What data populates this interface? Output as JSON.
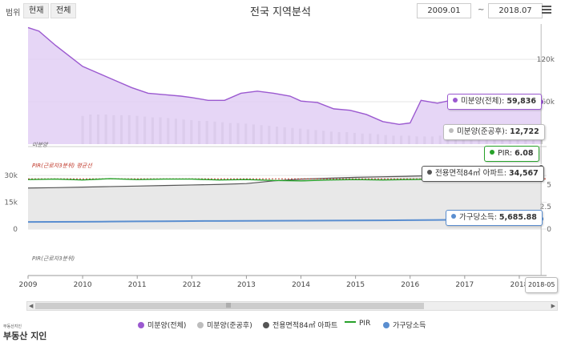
{
  "toolbar": {
    "range_label": "범위",
    "btn_current": "현재",
    "btn_all": "전체",
    "title": "전국 지역분석",
    "date_from": "2009.01",
    "tilde": "~",
    "date_to": "2018.07"
  },
  "colors": {
    "purple": "#9b59d0",
    "purple_fill": "#e2cff5",
    "gray_bar": "#bdbdbd",
    "apt_line": "#555555",
    "apt_fill": "#e8e8e8",
    "pir": "#27a12a",
    "pir_avg": "#c0392b",
    "income": "#5a8ed0"
  },
  "panel_labels": {
    "top": "미분양",
    "pir_avg": "PIR(근로자3분위) 평균선",
    "bottom": "PIR(근로자3분위)"
  },
  "tooltips": {
    "unsold_total": {
      "label": "미분양(전체): ",
      "value": "59,836"
    },
    "unsold_completed": {
      "label": "미분양(준공후): ",
      "value": "12,722"
    },
    "pir": {
      "label": "PIR: ",
      "value": "6.08"
    },
    "apt": {
      "label": "전용면적84㎡ 아파트: ",
      "value": "34,567"
    },
    "income": {
      "label": "가구당소득: ",
      "value": "5,685.88"
    },
    "x_flag": "2018-05"
  },
  "legend": [
    {
      "name": "미분양(전체)",
      "type": "dot",
      "color": "#9b59d0"
    },
    {
      "name": "미분양(준공후)",
      "type": "dot",
      "color": "#bdbdbd"
    },
    {
      "name": "전용면적84㎡ 아파트",
      "type": "dot",
      "color": "#555555"
    },
    {
      "name": "PIR",
      "type": "line",
      "color": "#27a12a"
    },
    {
      "name": "가구당소득",
      "type": "dot",
      "color": "#5a8ed0"
    }
  ],
  "logo": {
    "small": "부동산지인",
    "text": "부동산 지인"
  },
  "chart_data": [
    {
      "type": "area",
      "series": [
        {
          "name": "미분양(전체)",
          "x": [
            2009.0,
            2009.2,
            2009.5,
            2009.8,
            2010.0,
            2010.3,
            2010.6,
            2010.9,
            2011.2,
            2011.5,
            2011.8,
            2012.0,
            2012.3,
            2012.6,
            2012.9,
            2013.2,
            2013.5,
            2013.8,
            2014.0,
            2014.3,
            2014.6,
            2014.9,
            2015.2,
            2015.5,
            2015.8,
            2016.0,
            2016.2,
            2016.5,
            2016.8,
            2017.0,
            2017.3,
            2017.6,
            2017.9,
            2018.2,
            2018.4
          ],
          "values": [
            165000,
            160000,
            140000,
            122000,
            110000,
            100000,
            90000,
            80000,
            72000,
            70000,
            68000,
            66000,
            62000,
            62000,
            72000,
            75000,
            72000,
            68000,
            61000,
            59000,
            50000,
            48000,
            42000,
            32000,
            28000,
            30000,
            62000,
            58000,
            63000,
            58000,
            58000,
            55000,
            58000,
            60000,
            59836
          ]
        },
        {
          "name": "미분양(준공후)",
          "x_start": 2010.0,
          "x_end": 2018.4,
          "values": [
            40000,
            42000,
            42000,
            42000,
            41000,
            41000,
            41000,
            40000,
            39000,
            38000,
            38000,
            37000,
            36000,
            35000,
            34000,
            33000,
            33000,
            32000,
            31000,
            30000,
            30000,
            29000,
            28000,
            27000,
            26000,
            25000,
            24000,
            23000,
            22000,
            21000,
            20000,
            19000,
            18000,
            17000,
            17000,
            16000,
            15000,
            15000,
            14000,
            13000,
            12000,
            12000,
            12000,
            11000,
            11000,
            11000,
            12000,
            12000,
            12000,
            12000,
            13000,
            13000,
            13000,
            13000,
            12000,
            12000,
            12000,
            12000,
            12000,
            12722
          ]
        }
      ],
      "yticks": [
        "120k",
        "60k"
      ],
      "ylim": [
        0,
        170000
      ]
    },
    {
      "type": "line",
      "x": [
        2009.0,
        2009.5,
        2010.0,
        2010.5,
        2011.0,
        2011.5,
        2012.0,
        2012.5,
        2013.0,
        2013.5,
        2014.0,
        2014.5,
        2015.0,
        2015.5,
        2016.0,
        2016.5,
        2017.0,
        2017.5,
        2018.0,
        2018.4
      ],
      "series": [
        {
          "name": "전용면적84㎡ 아파트",
          "values": [
            23000,
            23200,
            23500,
            23800,
            24100,
            24400,
            24700,
            25000,
            25500,
            27000,
            28000,
            28500,
            29000,
            29300,
            29600,
            30000,
            31000,
            32000,
            33500,
            34567
          ]
        },
        {
          "name": "PIR",
          "values": [
            5.55,
            5.6,
            5.5,
            5.65,
            5.55,
            5.6,
            5.6,
            5.5,
            5.55,
            5.45,
            5.4,
            5.5,
            5.55,
            5.5,
            5.55,
            5.6,
            5.7,
            5.9,
            6.2,
            6.08
          ]
        },
        {
          "name": "가구당소득",
          "values": [
            4000,
            4050,
            4100,
            4200,
            4300,
            4400,
            4500,
            4550,
            4600,
            4650,
            4700,
            4750,
            4800,
            4900,
            5000,
            5100,
            5300,
            5400,
            5600,
            5685.88
          ]
        }
      ],
      "yticks_left": [
        "30k",
        "15k",
        "0"
      ],
      "yticks_right": [
        "5",
        "2.5",
        "0"
      ],
      "ylim_left": [
        0,
        35000
      ],
      "ylim_right": [
        0,
        7
      ]
    }
  ],
  "x_axis": {
    "ticks": [
      "2009",
      "2010",
      "2011",
      "2012",
      "2013",
      "2014",
      "2015",
      "2016",
      "2017",
      "2018"
    ]
  }
}
